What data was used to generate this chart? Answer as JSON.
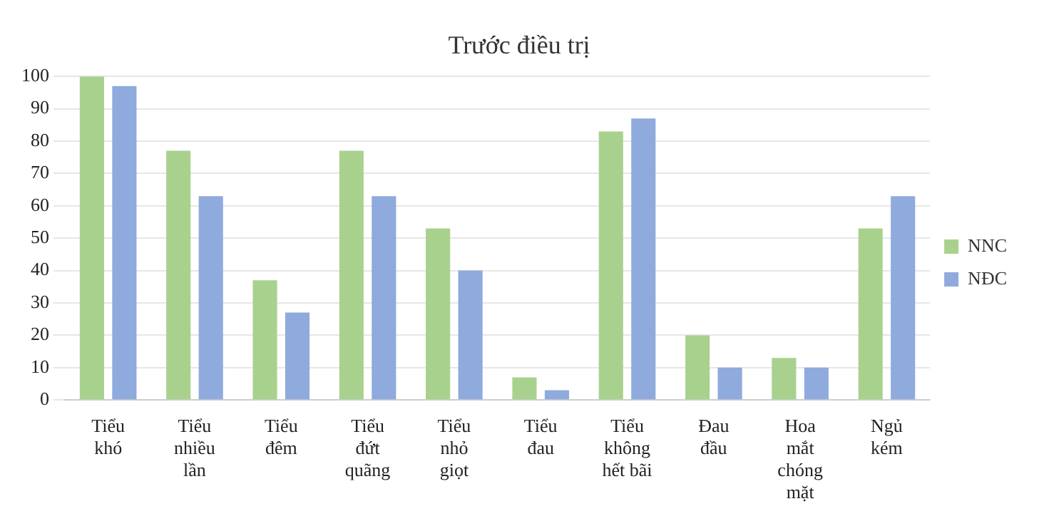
{
  "chart_data": {
    "type": "bar",
    "title": "Trước điều trị",
    "categories": [
      "Tiểu\nkhó",
      "Tiểu\nnhiều\nlần",
      "Tiểu\nđêm",
      "Tiểu\nđứt\nquãng",
      "Tiểu\nnhỏ\ngiọt",
      "Tiểu\nđau",
      "Tiểu\nkhông\nhết bãi",
      "Đau\nđầu",
      "Hoa\nmắt\nchóng\nmặt",
      "Ngủ\nkém"
    ],
    "series": [
      {
        "name": "NNC",
        "color": "#a9d18e",
        "values": [
          100,
          77,
          37,
          77,
          53,
          7,
          83,
          20,
          13,
          53
        ]
      },
      {
        "name": "NĐC",
        "color": "#8faadc",
        "values": [
          97,
          63,
          27,
          63,
          40,
          3,
          87,
          10,
          10,
          63
        ]
      }
    ],
    "ylim": [
      0,
      100
    ],
    "yticks": [
      0,
      10,
      20,
      30,
      40,
      50,
      60,
      70,
      80,
      90,
      100
    ],
    "grid": "y",
    "legend": "right"
  }
}
